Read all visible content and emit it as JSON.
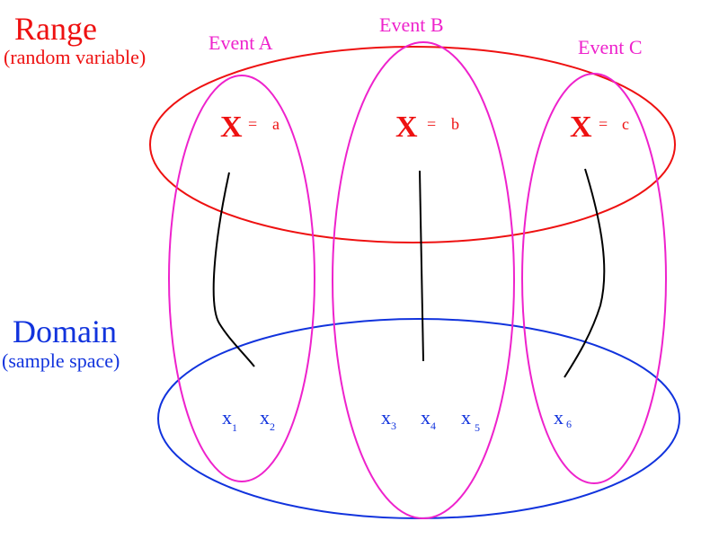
{
  "colors": {
    "range": "#ee1111",
    "domain": "#1133dd",
    "event": "#ee22cc",
    "mapping": "#000000"
  },
  "range": {
    "title": "Range",
    "subtitle": "(random variable)"
  },
  "domain": {
    "title": "Domain",
    "subtitle": "(sample space)"
  },
  "events": [
    {
      "label": "Event A",
      "variable": "X",
      "equals": "=",
      "value": "a"
    },
    {
      "label": "Event B",
      "variable": "X",
      "equals": "=",
      "value": "b"
    },
    {
      "label": "Event C",
      "variable": "X",
      "equals": "=",
      "value": "c"
    }
  ],
  "outcomes": [
    {
      "base": "x",
      "sub": "1"
    },
    {
      "base": "x",
      "sub": "2"
    },
    {
      "base": "x",
      "sub": "3"
    },
    {
      "base": "x",
      "sub": "4"
    },
    {
      "base": "x",
      "sub": "5"
    },
    {
      "base": "x",
      "sub": "6"
    }
  ]
}
